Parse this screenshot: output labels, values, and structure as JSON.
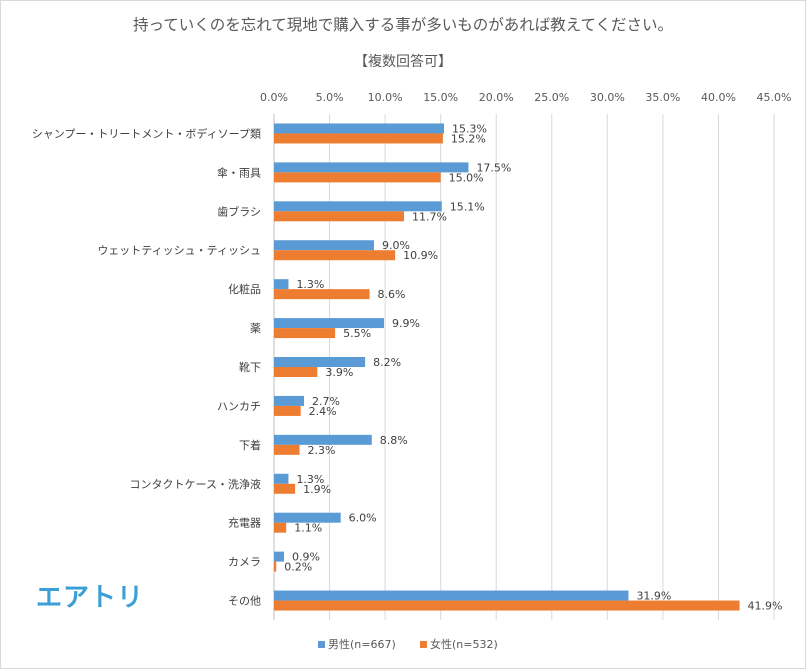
{
  "chart_data": {
    "type": "bar",
    "orientation": "horizontal",
    "title": "持っていくのを忘れて現地で購入する事が多いものがあれば教えてください。",
    "subtitle": "【複数回答可】",
    "xlim": [
      0,
      45
    ],
    "x_ticks": [
      "0.0%",
      "5.0%",
      "10.0%",
      "15.0%",
      "20.0%",
      "25.0%",
      "30.0%",
      "35.0%",
      "40.0%",
      "45.0%"
    ],
    "grid": true,
    "legend_position": "bottom",
    "categories": [
      "シャンプー・トリートメント・ボディソープ類",
      "傘・雨具",
      "歯ブラシ",
      "ウェットティッシュ・ティッシュ",
      "化粧品",
      "薬",
      "靴下",
      "ハンカチ",
      "下着",
      "コンタクトケース・洗浄液",
      "充電器",
      "カメラ",
      "その他"
    ],
    "series": [
      {
        "name": "男性(n=667)",
        "color": "#5b9bd5",
        "values": [
          15.3,
          17.5,
          15.1,
          9.0,
          1.3,
          9.9,
          8.2,
          2.7,
          8.8,
          1.3,
          6.0,
          0.9,
          31.9
        ],
        "labels": [
          "15.3%",
          "17.5%",
          "15.1%",
          "9.0%",
          "1.3%",
          "9.9%",
          "8.2%",
          "2.7%",
          "8.8%",
          "1.3%",
          "6.0%",
          "0.9%",
          "31.9%"
        ]
      },
      {
        "name": "女性(n=532)",
        "color": "#ed7d31",
        "values": [
          15.2,
          15.0,
          11.7,
          10.9,
          8.6,
          5.5,
          3.9,
          2.4,
          2.3,
          1.9,
          1.1,
          0.2,
          41.9
        ],
        "labels": [
          "15.2%",
          "15.0%",
          "11.7%",
          "10.9%",
          "8.6%",
          "5.5%",
          "3.9%",
          "2.4%",
          "2.3%",
          "1.9%",
          "1.1%",
          "0.2%",
          "41.9%"
        ]
      }
    ]
  },
  "logo": {
    "text": "エアトリ",
    "color": "#3a9fd6"
  }
}
